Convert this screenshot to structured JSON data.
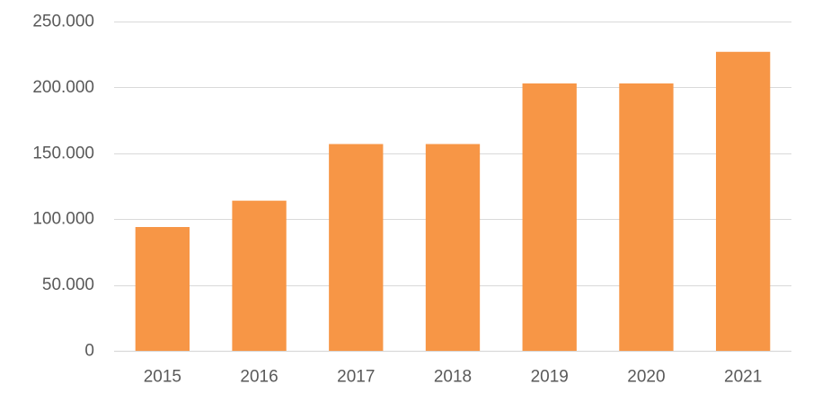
{
  "chart_data": {
    "type": "bar",
    "title": "",
    "xlabel": "",
    "ylabel": "",
    "categories": [
      "2015",
      "2016",
      "2017",
      "2018",
      "2019",
      "2020",
      "2021"
    ],
    "series": [
      {
        "values": [
          94000,
          114000,
          157000,
          157000,
          203000,
          203000,
          227000
        ]
      }
    ],
    "ylim": [
      0,
      250000
    ],
    "yticks": [
      0,
      50000,
      100000,
      150000,
      200000,
      250000
    ],
    "ytick_labels": [
      "0",
      "50.000",
      "100.000",
      "150.000",
      "200.000",
      "250.000"
    ],
    "grid": true,
    "legend": "none",
    "bar_color": "#f79646",
    "grid_color": "#d9d9d9",
    "text_color": "#595959"
  }
}
